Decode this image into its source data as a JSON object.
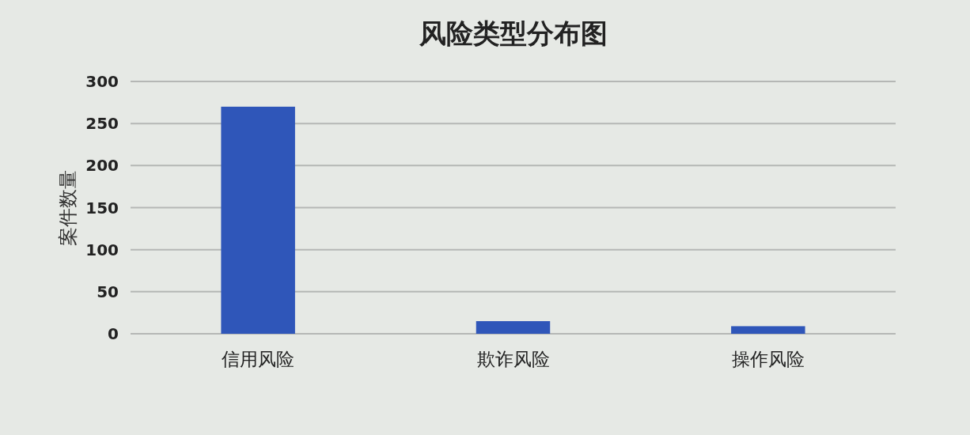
{
  "chart_data": {
    "type": "bar",
    "title": "风险类型分布图",
    "ylabel": "案件数量",
    "categories": [
      "信用风险",
      "欺诈风险",
      "操作风险"
    ],
    "values": [
      270,
      15,
      9
    ],
    "color": "#2f56b9",
    "ylim": [
      0,
      300
    ],
    "yticks": [
      0,
      50,
      100,
      150,
      200,
      250,
      300
    ],
    "grid": "y"
  }
}
